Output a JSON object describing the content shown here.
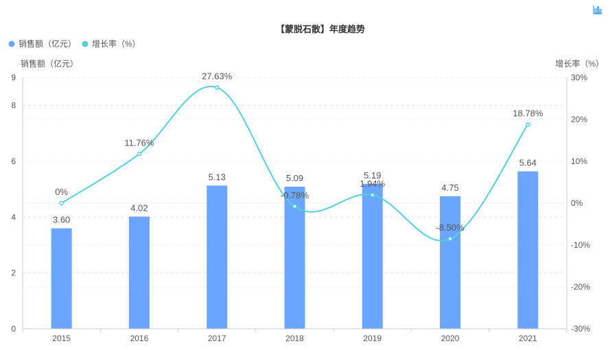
{
  "chart_data": {
    "type": "bar",
    "title": "【蒙脱石散】年度趋势",
    "categories": [
      "2015",
      "2016",
      "2017",
      "2018",
      "2019",
      "2020",
      "2021"
    ],
    "series": [
      {
        "name": "销售额（亿元）",
        "type": "bar",
        "axis": "left",
        "color": "#6aa6ff",
        "values": [
          3.6,
          4.02,
          5.13,
          5.09,
          5.19,
          4.75,
          5.64
        ],
        "labels": [
          "3.60",
          "4.02",
          "5.13",
          "5.09",
          "5.19",
          "4.75",
          "5.64"
        ]
      },
      {
        "name": "增长率（%）",
        "type": "line",
        "axis": "right",
        "color": "#56cfd9",
        "values": [
          0,
          11.76,
          27.63,
          -0.78,
          1.94,
          -8.5,
          18.78
        ],
        "labels": [
          "0%",
          "11.76%",
          "27.63%",
          "-0.78%",
          "1.94%",
          "-8.50%",
          "18.78%"
        ]
      }
    ],
    "ylabel_left": "销售额（亿元）",
    "ylabel_right": "增长率（%）",
    "ylim_left": [
      0,
      9
    ],
    "yticks_left": [
      "0",
      "2",
      "4",
      "6",
      "8",
      "9"
    ],
    "yticks_left_values": [
      0,
      2,
      4,
      6,
      8,
      9
    ],
    "ylim_right": [
      -30,
      30
    ],
    "yticks_right": [
      "-30%",
      "-20%",
      "-10%",
      "0%",
      "10%",
      "20%",
      "30%"
    ],
    "yticks_right_values": [
      -30,
      -20,
      -10,
      0,
      10,
      20,
      30
    ],
    "grid": true,
    "legend_position": "top-left"
  },
  "toolbox": {
    "icon": "bar-chart-icon"
  }
}
